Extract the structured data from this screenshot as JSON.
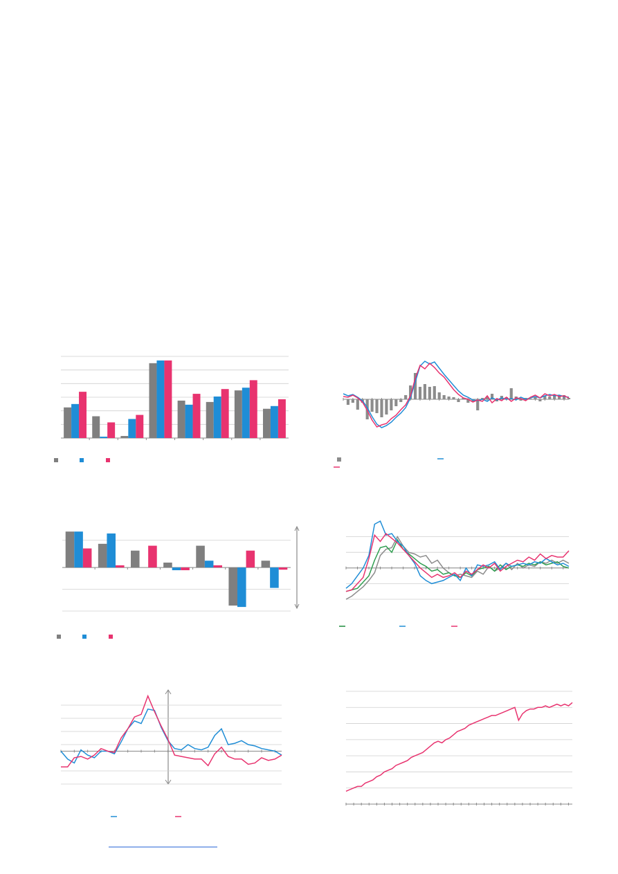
{
  "chart_data": [
    {
      "type": "bar",
      "ylim": [
        0,
        6
      ],
      "yticks": [
        0,
        1,
        2,
        3,
        4,
        5,
        6
      ],
      "grid": true,
      "series": [
        {
          "color": "#7f7f7f",
          "values": [
            2.25,
            1.6,
            0.15,
            5.5,
            2.75,
            2.65,
            3.5,
            2.15
          ]
        },
        {
          "color": "#1f8dd6",
          "values": [
            2.5,
            0.1,
            1.4,
            5.7,
            2.45,
            3.05,
            3.7,
            2.35
          ]
        },
        {
          "color": "#e8336f",
          "values": [
            3.4,
            1.15,
            1.7,
            5.7,
            3.25,
            3.6,
            4.25,
            2.85
          ]
        }
      ]
    },
    {
      "type": "combo",
      "ylim": [
        -6,
        6
      ],
      "grid": false,
      "series": [
        {
          "type": "bar",
          "color": "#8c8c8c",
          "values": [
            0,
            -0.8,
            -0.5,
            -1.5,
            -0.5,
            -2.9,
            -1.8,
            -2,
            -2.6,
            -2.2,
            -1.6,
            -1,
            -0.4,
            0.6,
            2,
            3.8,
            1.8,
            2.2,
            1.8,
            1.9,
            1,
            0.6,
            0.4,
            0.3,
            -0.4,
            0.2,
            -0.5,
            -0.3,
            -1.6,
            0.2,
            0.4,
            0.8,
            -0.3,
            0.5,
            0.3,
            1.6,
            0.4,
            -0.2,
            0.2,
            0.1,
            0.3,
            -0.3,
            0.5,
            0.4,
            0.7,
            0.6,
            0.6,
            0.2
          ]
        },
        {
          "type": "line",
          "color": "#1f8dd6",
          "values": [
            0.8,
            0.5,
            0.7,
            0.3,
            -0.2,
            -1.2,
            -2.5,
            -3.6,
            -4.1,
            -3.8,
            -3.3,
            -2.6,
            -2,
            -1.2,
            0.2,
            2.5,
            4.8,
            5.5,
            5.1,
            5.4,
            4.5,
            3.6,
            2.8,
            2,
            1.2,
            0.6,
            0.3,
            -0.1,
            -0.2,
            0,
            -0.3,
            0.2,
            -0.1,
            0.2,
            0,
            0.1,
            -0.1,
            0.3,
            0,
            0.2,
            0.4,
            0.2,
            0.5,
            0.7,
            0.5,
            0.6,
            0.4,
            0.3
          ]
        },
        {
          "type": "line",
          "color": "#e8336f",
          "values": [
            0.4,
            0.3,
            0.6,
            0.2,
            -0.4,
            -1.6,
            -3,
            -4,
            -3.7,
            -3.5,
            -2.8,
            -2.3,
            -1.5,
            -0.8,
            0.5,
            3,
            4.9,
            4.4,
            5.2,
            4.6,
            3.8,
            3.2,
            2.3,
            1.4,
            0.7,
            0.2,
            0,
            -0.4,
            -0.1,
            -0.3,
            0.5,
            -0.5,
            0.1,
            -0.2,
            0.3,
            -0.3,
            0.2,
            0.1,
            -0.2,
            0.3,
            0.6,
            0.2,
            0.8,
            0.5,
            0.7,
            0.4,
            0.5,
            0.2
          ]
        }
      ]
    },
    {
      "type": "bar",
      "ylim": [
        -1.6,
        1.4
      ],
      "yticks": [
        -1.6,
        -0.8,
        0,
        1
      ],
      "grid": true,
      "series": [
        {
          "color": "#7f7f7f",
          "values": [
            1.32,
            0.87,
            0.62,
            0.18,
            0.8,
            -1.4,
            0.25
          ]
        },
        {
          "color": "#1f8dd6",
          "values": [
            1.32,
            1.25,
            0,
            -0.1,
            0.25,
            -1.45,
            -0.75
          ]
        },
        {
          "color": "#e8336f",
          "values": [
            0.7,
            0.08,
            0.8,
            -0.1,
            0.08,
            0.62,
            -0.08
          ]
        }
      ]
    },
    {
      "type": "line",
      "ylim": [
        -2,
        3
      ],
      "yticks": [
        -2,
        -1,
        0,
        1,
        2
      ],
      "grid": true,
      "series": [
        {
          "color": "#8c8c8c",
          "values": [
            -2,
            -1.8,
            -1.5,
            -1.2,
            -0.8,
            -0.3,
            0.8,
            1.2,
            1.3,
            2,
            1.4,
            1,
            0.9,
            0.7,
            0.8,
            0.3,
            0.5,
            0,
            -0.3,
            -0.5,
            -0.4,
            -0.5,
            -0.6,
            -0.2,
            -0.4,
            0.1,
            -0.2,
            0,
            0.3,
            -0.1,
            0.3,
            0,
            0.2,
            0.1,
            0.4,
            0.3,
            0.5,
            0.3,
            0.5,
            0.3
          ]
        },
        {
          "color": "#2e9e4f",
          "values": [
            -1.5,
            -1.4,
            -1.3,
            -0.9,
            -0.5,
            0.5,
            1.3,
            1.4,
            1,
            1.8,
            1.2,
            0.9,
            0.6,
            0.3,
            0.1,
            -0.2,
            -0.1,
            -0.4,
            -0.3,
            -0.5,
            -0.6,
            -0.3,
            -0.5,
            -0.1,
            0,
            0.1,
            -0.2,
            0.2,
            -0.1,
            0.1,
            0.2,
            0.1,
            0.3,
            0.2,
            0.4,
            0.2,
            0.3,
            0.4,
            0.1,
            0
          ]
        },
        {
          "color": "#1f8dd6",
          "values": [
            -1.3,
            -1,
            -0.5,
            0,
            0.8,
            2.8,
            3,
            2.1,
            2.2,
            1.7,
            1.4,
            0.8,
            0.3,
            -0.5,
            -0.8,
            -1,
            -0.9,
            -0.8,
            -0.6,
            -0.4,
            -0.8,
            0,
            -0.5,
            0.2,
            0.1,
            0.2,
            0.4,
            -0.1,
            0.3,
            0.1,
            0.2,
            0.3,
            0.2,
            0.4,
            0.3,
            0.6,
            0.4,
            0.2,
            0.3,
            0.1
          ]
        },
        {
          "color": "#e8336f",
          "values": [
            -1.5,
            -1.4,
            -1,
            -0.6,
            0.6,
            2.1,
            1.7,
            2.2,
            1.9,
            1.6,
            1.2,
            0.8,
            0.4,
            0,
            -0.3,
            -0.6,
            -0.4,
            -0.6,
            -0.5,
            -0.3,
            -0.6,
            -0.2,
            -0.4,
            -0.1,
            0.2,
            0,
            0.3,
            -0.2,
            0.1,
            0.3,
            0.5,
            0.4,
            0.7,
            0.5,
            0.9,
            0.6,
            0.8,
            0.7,
            0.7,
            1.1
          ]
        }
      ]
    },
    {
      "type": "line",
      "ylim": [
        -2.5,
        4.5
      ],
      "yticks": [
        -2.5,
        -1.5,
        0.5,
        1.5,
        2.5,
        3.5
      ],
      "grid": true,
      "series": [
        {
          "color": "#1f8dd6",
          "values": [
            0,
            -0.6,
            -0.9,
            0.1,
            -0.3,
            -0.5,
            0,
            0,
            -0.2,
            0.7,
            1.7,
            2.3,
            2.1,
            3.2,
            3.1,
            1.8,
            0.8,
            0.2,
            0.1,
            0.5,
            0.2,
            0.1,
            0.3,
            1.2,
            1.7,
            0.5,
            0.6,
            0.8,
            0.5,
            0.4,
            0.2,
            0.1,
            0,
            -0.3
          ]
        },
        {
          "color": "#e8336f",
          "values": [
            -1.2,
            -1.2,
            -0.5,
            -0.4,
            -0.6,
            -0.3,
            0.2,
            0,
            -0.1,
            1,
            1.7,
            2.6,
            2.8,
            4.2,
            3,
            1.9,
            0.9,
            -0.3,
            -0.4,
            -0.5,
            -0.6,
            -0.6,
            -1.1,
            -0.2,
            0.3,
            -0.4,
            -0.6,
            -0.6,
            -1,
            -0.9,
            -0.5,
            -0.7,
            -0.6,
            -0.3
          ]
        }
      ]
    },
    {
      "type": "line",
      "ylim": [
        0,
        7
      ],
      "yticks": [
        0,
        1,
        2,
        3,
        4,
        5,
        6,
        7
      ],
      "grid": true,
      "series": [
        {
          "color": "#e8336f",
          "values": [
            0.8,
            0.9,
            1.0,
            1.1,
            1.1,
            1.3,
            1.4,
            1.5,
            1.7,
            1.8,
            2.0,
            2.1,
            2.2,
            2.4,
            2.5,
            2.6,
            2.7,
            2.9,
            3.0,
            3.1,
            3.2,
            3.4,
            3.6,
            3.8,
            3.9,
            3.8,
            4.0,
            4.1,
            4.3,
            4.5,
            4.6,
            4.7,
            4.9,
            5.0,
            5.1,
            5.2,
            5.3,
            5.4,
            5.5,
            5.5,
            5.6,
            5.7,
            5.8,
            5.9,
            6.0,
            5.2,
            5.6,
            5.8,
            5.9,
            5.9,
            6.0,
            6.0,
            6.1,
            6.0,
            6.1,
            6.2,
            6.1,
            6.2,
            6.1,
            6.3
          ]
        }
      ]
    }
  ]
}
